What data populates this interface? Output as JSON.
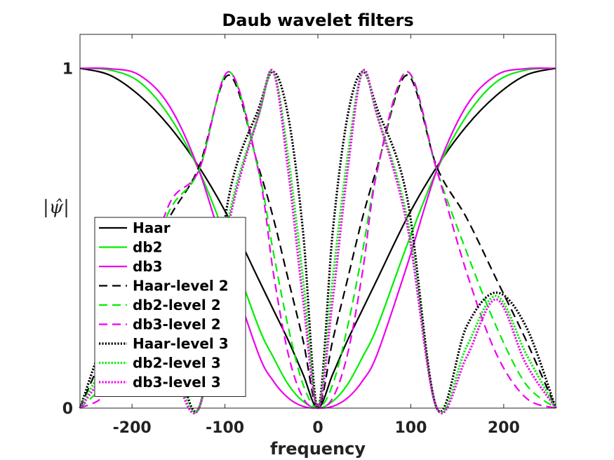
{
  "chart_data": {
    "type": "line",
    "title": "Daub wavelet filters",
    "xlabel": "frequency",
    "ylabel": "|ψ̂|",
    "xlim": [
      -256,
      256
    ],
    "ylim": [
      0,
      1.1
    ],
    "xticks": [
      -200,
      -100,
      0,
      100,
      200
    ],
    "yticks": [
      0,
      1
    ],
    "xtick_labels": [
      "-200",
      "-100",
      "0",
      "100",
      "200"
    ],
    "ytick_labels": [
      "0",
      "1"
    ],
    "grid": false,
    "legend_position": "lower-left",
    "x": [
      -256,
      -224,
      -192,
      -160,
      -128,
      -96,
      -64,
      -48,
      -32,
      -16,
      0,
      16,
      32,
      48,
      64,
      96,
      128,
      160,
      192,
      224,
      256
    ],
    "series": [
      {
        "name": "Haar",
        "color": "#000000",
        "dash": "solid",
        "values": [
          1.0,
          0.98,
          0.92,
          0.83,
          0.71,
          0.56,
          0.38,
          0.29,
          0.2,
          0.1,
          0.0,
          0.1,
          0.2,
          0.29,
          0.38,
          0.56,
          0.71,
          0.83,
          0.92,
          0.98,
          1.0
        ]
      },
      {
        "name": "db2",
        "color": "#00ee00",
        "dash": "solid",
        "values": [
          1.0,
          0.995,
          0.96,
          0.86,
          0.7,
          0.48,
          0.24,
          0.15,
          0.07,
          0.02,
          0.0,
          0.02,
          0.07,
          0.15,
          0.24,
          0.48,
          0.7,
          0.86,
          0.96,
          0.995,
          1.0
        ]
      },
      {
        "name": "db3",
        "color": "#ee00ee",
        "dash": "solid",
        "values": [
          1.0,
          0.999,
          0.98,
          0.89,
          0.7,
          0.42,
          0.16,
          0.08,
          0.03,
          0.005,
          0.0,
          0.005,
          0.03,
          0.08,
          0.16,
          0.42,
          0.7,
          0.89,
          0.98,
          0.999,
          1.0
        ]
      },
      {
        "name": "Haar-level 2",
        "color": "#000000",
        "dash": "dashed",
        "values": [
          0.0,
          0.2,
          0.38,
          0.56,
          0.71,
          0.98,
          0.71,
          0.56,
          0.38,
          0.2,
          0.0,
          0.2,
          0.38,
          0.56,
          0.71,
          0.98,
          0.71,
          0.56,
          0.38,
          0.2,
          0.0
        ]
      },
      {
        "name": "db2-level 2",
        "color": "#00ee00",
        "dash": "dashed",
        "values": [
          0.0,
          0.1,
          0.34,
          0.58,
          0.7,
          0.99,
          0.7,
          0.46,
          0.24,
          0.07,
          0.0,
          0.07,
          0.24,
          0.46,
          0.7,
          0.99,
          0.7,
          0.46,
          0.24,
          0.07,
          0.0
        ]
      },
      {
        "name": "db3-level 2",
        "color": "#ee00ee",
        "dash": "dashed",
        "values": [
          0.0,
          0.06,
          0.32,
          0.6,
          0.7,
          0.99,
          0.7,
          0.4,
          0.16,
          0.03,
          0.0,
          0.03,
          0.16,
          0.4,
          0.7,
          0.99,
          0.7,
          0.4,
          0.16,
          0.03,
          0.0
        ]
      },
      {
        "name": "Haar-level 3",
        "color": "#000000",
        "dash": "dotted",
        "values": [
          0.0,
          0.24,
          0.34,
          0.24,
          0.0,
          0.62,
          0.88,
          0.99,
          0.86,
          0.52,
          0.0,
          0.52,
          0.86,
          0.99,
          0.88,
          0.62,
          0.0,
          0.24,
          0.34,
          0.24,
          0.0
        ]
      },
      {
        "name": "db2-level 3",
        "color": "#00ee00",
        "dash": "dotted",
        "values": [
          0.0,
          0.16,
          0.33,
          0.18,
          0.0,
          0.56,
          0.86,
          0.99,
          0.74,
          0.38,
          0.0,
          0.38,
          0.74,
          0.99,
          0.86,
          0.56,
          0.0,
          0.18,
          0.33,
          0.16,
          0.0
        ]
      },
      {
        "name": "db3-level 3",
        "color": "#ee00ee",
        "dash": "dotted",
        "values": [
          0.0,
          0.13,
          0.32,
          0.15,
          0.0,
          0.54,
          0.86,
          0.99,
          0.7,
          0.32,
          0.0,
          0.32,
          0.7,
          0.99,
          0.86,
          0.54,
          0.0,
          0.15,
          0.32,
          0.13,
          0.0
        ]
      }
    ]
  }
}
